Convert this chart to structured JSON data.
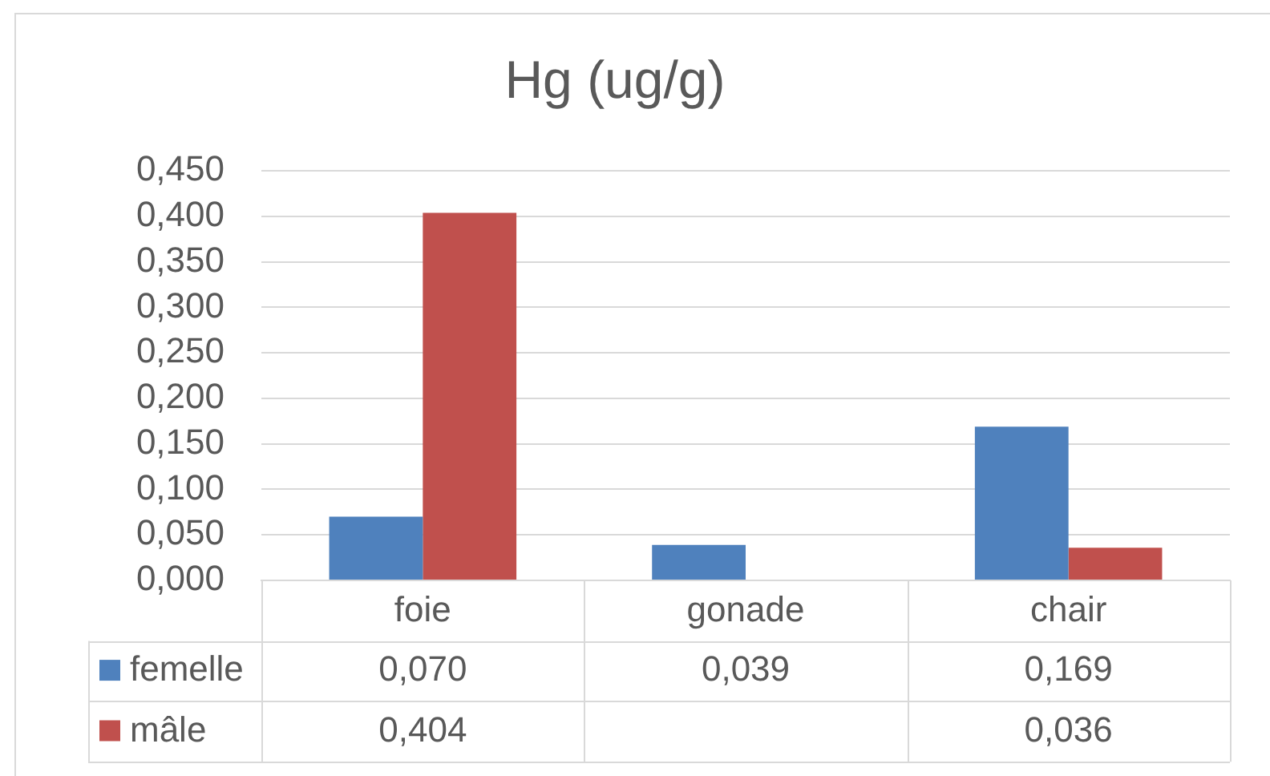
{
  "chart_data": {
    "type": "bar",
    "title": "Hg (ug/g)",
    "categories": [
      "foie",
      "gonade",
      "chair"
    ],
    "series": [
      {
        "name": "femelle",
        "color": "#4f81bd",
        "values": [
          0.07,
          0.039,
          0.169
        ],
        "value_labels": [
          "0,070",
          "0,039",
          "0,169"
        ]
      },
      {
        "name": "mâle",
        "color": "#c0504d",
        "values": [
          0.404,
          null,
          0.036
        ],
        "value_labels": [
          "0,404",
          null,
          "0,036"
        ]
      }
    ],
    "ylim": [
      0,
      0.45
    ],
    "yticks": [
      {
        "value": 0,
        "label": "0,000"
      },
      {
        "value": 0.05,
        "label": "0,050"
      },
      {
        "value": 0.1,
        "label": "0,100"
      },
      {
        "value": 0.15,
        "label": "0,150"
      },
      {
        "value": 0.2,
        "label": "0,200"
      },
      {
        "value": 0.25,
        "label": "0,250"
      },
      {
        "value": 0.3,
        "label": "0,300"
      },
      {
        "value": 0.35,
        "label": "0,350"
      },
      {
        "value": 0.4,
        "label": "0,400"
      },
      {
        "value": 0.45,
        "label": "0,450"
      }
    ],
    "grid": "y",
    "legend": "bottom"
  }
}
